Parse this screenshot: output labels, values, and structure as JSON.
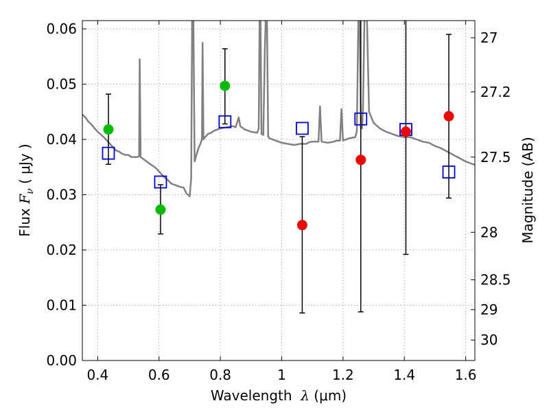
{
  "chart_data": {
    "type": "scatter",
    "title": "",
    "xlabel_prefix": "Wavelength  ",
    "xlabel_math": "λ",
    "xlabel_suffix": " (μm)",
    "ylabel_prefix": "Flux  ",
    "ylabel_math": "F",
    "ylabel_sub": "ν",
    "ylabel_suffix": " ( μJy )",
    "y2label": "Magnitude (AB)",
    "xlim": [
      0.35,
      1.63
    ],
    "ylim": [
      0.0,
      0.0615
    ],
    "grid": true,
    "x_ticks": [
      0.4,
      0.6,
      0.8,
      1.0,
      1.2,
      1.4,
      1.6
    ],
    "x_tick_labels": [
      "0.4",
      "0.6",
      "0.8",
      "1",
      "1.2",
      "1.4",
      "1.6"
    ],
    "y_ticks": [
      0.0,
      0.01,
      0.02,
      0.03,
      0.04,
      0.05,
      0.06
    ],
    "y_tick_labels": [
      "0.00",
      "0.01",
      "0.02",
      "0.03",
      "0.04",
      "0.05",
      "0.06"
    ],
    "y2_ticks": [
      {
        "label": "27",
        "flux": 0.0584
      },
      {
        "label": "27.2",
        "flux": 0.0486
      },
      {
        "label": "27.5",
        "flux": 0.0368
      },
      {
        "label": "28",
        "flux": 0.0232
      },
      {
        "label": "28.5",
        "flux": 0.0146
      },
      {
        "label": "29",
        "flux": 0.0092
      },
      {
        "label": "30",
        "flux": 0.0037
      }
    ],
    "colors": {
      "sed": "#808080",
      "model_marker": "#0000cc",
      "obs_green": "#00bb00",
      "obs_red": "#ee0000",
      "errorbar": "#000000"
    },
    "series": [
      {
        "kind": "sed_line",
        "points": [
          [
            0.35,
            0.0445
          ],
          [
            0.36,
            0.044
          ],
          [
            0.37,
            0.0432
          ],
          [
            0.38,
            0.0427
          ],
          [
            0.39,
            0.042
          ],
          [
            0.4,
            0.0414
          ],
          [
            0.41,
            0.0409
          ],
          [
            0.42,
            0.0404
          ],
          [
            0.43,
            0.0398
          ],
          [
            0.44,
            0.0392
          ],
          [
            0.45,
            0.0386
          ],
          [
            0.46,
            0.038
          ],
          [
            0.47,
            0.0378
          ],
          [
            0.48,
            0.0374
          ],
          [
            0.49,
            0.0372
          ],
          [
            0.5,
            0.0372
          ],
          [
            0.51,
            0.0368
          ],
          [
            0.52,
            0.0368
          ],
          [
            0.53,
            0.0368
          ],
          [
            0.535,
            0.037
          ],
          [
            0.537,
            0.0545
          ],
          [
            0.54,
            0.0368
          ],
          [
            0.55,
            0.0364
          ],
          [
            0.56,
            0.036
          ],
          [
            0.57,
            0.0356
          ],
          [
            0.58,
            0.0352
          ],
          [
            0.59,
            0.0348
          ],
          [
            0.6,
            0.0342
          ],
          [
            0.61,
            0.0336
          ],
          [
            0.62,
            0.033
          ],
          [
            0.63,
            0.0326
          ],
          [
            0.64,
            0.032
          ],
          [
            0.65,
            0.0318
          ],
          [
            0.66,
            0.0316
          ],
          [
            0.67,
            0.0314
          ],
          [
            0.68,
            0.0313
          ],
          [
            0.69,
            0.0302
          ],
          [
            0.7,
            0.0297
          ],
          [
            0.705,
            0.033
          ],
          [
            0.708,
            0.062
          ],
          [
            0.712,
            0.062
          ],
          [
            0.716,
            0.036
          ],
          [
            0.72,
            0.0368
          ],
          [
            0.725,
            0.0378
          ],
          [
            0.73,
            0.0386
          ],
          [
            0.735,
            0.0392
          ],
          [
            0.74,
            0.04
          ],
          [
            0.742,
            0.0575
          ],
          [
            0.745,
            0.04
          ],
          [
            0.75,
            0.0404
          ],
          [
            0.76,
            0.041
          ],
          [
            0.77,
            0.0412
          ],
          [
            0.78,
            0.0416
          ],
          [
            0.79,
            0.0418
          ],
          [
            0.8,
            0.042
          ],
          [
            0.82,
            0.0422
          ],
          [
            0.84,
            0.0424
          ],
          [
            0.85,
            0.0422
          ],
          [
            0.86,
            0.044
          ],
          [
            0.865,
            0.0424
          ],
          [
            0.88,
            0.0418
          ],
          [
            0.9,
            0.0414
          ],
          [
            0.92,
            0.0412
          ],
          [
            0.925,
            0.042
          ],
          [
            0.928,
            0.062
          ],
          [
            0.931,
            0.062
          ],
          [
            0.934,
            0.041
          ],
          [
            0.94,
            0.0408
          ],
          [
            0.945,
            0.056
          ],
          [
            0.948,
            0.062
          ],
          [
            0.952,
            0.062
          ],
          [
            0.956,
            0.0405
          ],
          [
            0.96,
            0.0402
          ],
          [
            0.98,
            0.0398
          ],
          [
            1.0,
            0.0394
          ],
          [
            1.02,
            0.0392
          ],
          [
            1.04,
            0.039
          ],
          [
            1.06,
            0.0392
          ],
          [
            1.08,
            0.0392
          ],
          [
            1.09,
            0.0395
          ],
          [
            1.1,
            0.0396
          ],
          [
            1.12,
            0.0396
          ],
          [
            1.125,
            0.046
          ],
          [
            1.13,
            0.0396
          ],
          [
            1.15,
            0.0394
          ],
          [
            1.17,
            0.0396
          ],
          [
            1.18,
            0.0398
          ],
          [
            1.19,
            0.0398
          ],
          [
            1.195,
            0.0455
          ],
          [
            1.2,
            0.0398
          ],
          [
            1.22,
            0.0402
          ],
          [
            1.24,
            0.0404
          ],
          [
            1.245,
            0.0415
          ],
          [
            1.25,
            0.062
          ],
          [
            1.254,
            0.062
          ],
          [
            1.258,
            0.042
          ],
          [
            1.262,
            0.042
          ],
          [
            1.265,
            0.0455
          ],
          [
            1.27,
            0.062
          ],
          [
            1.278,
            0.062
          ],
          [
            1.285,
            0.045
          ],
          [
            1.3,
            0.043
          ],
          [
            1.32,
            0.042
          ],
          [
            1.34,
            0.0414
          ],
          [
            1.36,
            0.041
          ],
          [
            1.38,
            0.0406
          ],
          [
            1.4,
            0.0404
          ],
          [
            1.42,
            0.0404
          ],
          [
            1.44,
            0.04
          ],
          [
            1.46,
            0.0396
          ],
          [
            1.48,
            0.0394
          ],
          [
            1.5,
            0.0388
          ],
          [
            1.52,
            0.0384
          ],
          [
            1.54,
            0.0378
          ],
          [
            1.56,
            0.0372
          ],
          [
            1.58,
            0.0366
          ],
          [
            1.6,
            0.036
          ],
          [
            1.62,
            0.0356
          ],
          [
            1.63,
            0.0354
          ]
        ]
      },
      {
        "kind": "model_photometry",
        "marker": "open-square",
        "points": [
          {
            "x": 0.435,
            "y": 0.0375
          },
          {
            "x": 0.605,
            "y": 0.0323
          },
          {
            "x": 0.815,
            "y": 0.0432
          },
          {
            "x": 1.067,
            "y": 0.042
          },
          {
            "x": 1.258,
            "y": 0.0437
          },
          {
            "x": 1.405,
            "y": 0.0418
          },
          {
            "x": 1.545,
            "y": 0.0341
          }
        ]
      },
      {
        "kind": "observed_photometry",
        "marker": "filled-circle",
        "points": [
          {
            "x": 0.435,
            "y": 0.0418,
            "err_low": 0.0355,
            "err_high": 0.0482,
            "color": "green"
          },
          {
            "x": 0.605,
            "y": 0.0273,
            "err_low": 0.0229,
            "err_high": 0.0318,
            "color": "green"
          },
          {
            "x": 0.815,
            "y": 0.0497,
            "err_low": 0.0428,
            "err_high": 0.0564,
            "color": "green"
          },
          {
            "x": 1.067,
            "y": 0.0245,
            "err_low": 0.0086,
            "err_high": 0.0405,
            "color": "red"
          },
          {
            "x": 1.258,
            "y": 0.0363,
            "err_low": 0.0088,
            "err_high": 0.064,
            "color": "red"
          },
          {
            "x": 1.405,
            "y": 0.0414,
            "err_low": 0.0192,
            "err_high": 0.064,
            "color": "red"
          },
          {
            "x": 1.545,
            "y": 0.0442,
            "err_low": 0.0294,
            "err_high": 0.059,
            "color": "red"
          }
        ]
      }
    ]
  }
}
